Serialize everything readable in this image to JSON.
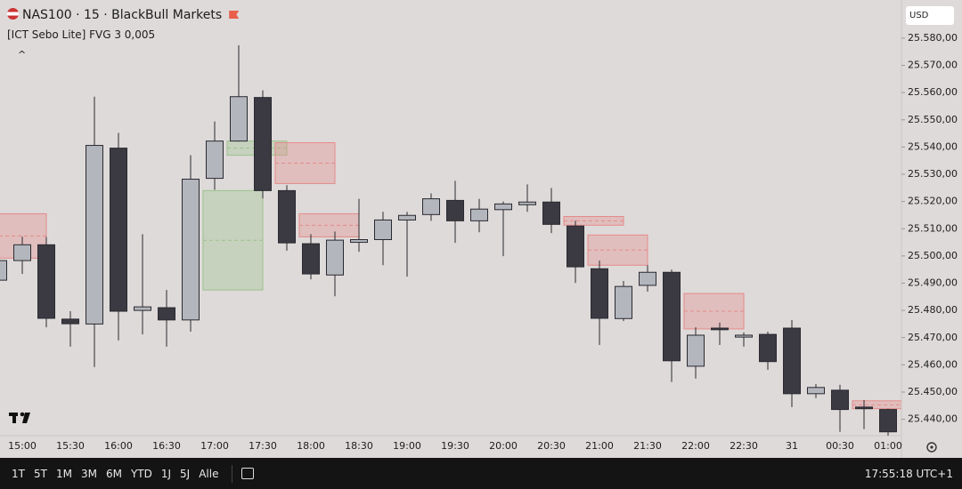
{
  "header": {
    "title": "NAS100 · 15 · BlackBull Markets",
    "indicator": "[ICT Sebo Lite] FVG 3 0,005",
    "currency": "USD"
  },
  "toolbar": {
    "timeframes": [
      "1T",
      "5T",
      "1M",
      "3M",
      "6M",
      "YTD",
      "1J",
      "5J",
      "Alle"
    ],
    "clock": "17:55:18 UTC+1"
  },
  "chart_data": {
    "type": "candlestick",
    "categories": [
      null,
      "15:00",
      null,
      "15:30",
      null,
      "16:00",
      null,
      "16:30",
      null,
      "17:00",
      null,
      "17:30",
      null,
      "18:00",
      null,
      "18:30",
      null,
      "19:00",
      null,
      "19:30",
      null,
      "20:00",
      null,
      "20:30",
      null,
      "21:00",
      null,
      "21:30",
      null,
      "22:00",
      null,
      "22:30",
      null,
      "31",
      null,
      "00:30",
      null,
      "01:00"
    ],
    "open": [
      25491.1,
      25498.3,
      25504.1,
      25476.8,
      25475.0,
      25539.6,
      25480.0,
      25481.0,
      25476.5,
      25528.5,
      25542.2,
      25558.2,
      25524.0,
      25504.5,
      25493.0,
      25505.0,
      25506.0,
      25513.2,
      25515.2,
      25520.4,
      25512.9,
      25517.0,
      25518.8,
      25519.8,
      25511.0,
      25495.3,
      25477.0,
      25489.2,
      25494.0,
      25459.5,
      25473.5,
      25470.2,
      25471.2,
      25473.5,
      25449.4,
      25450.7,
      25444.5,
      25443.6
    ],
    "high": [
      25500.0,
      25507.1,
      25507.0,
      25479.7,
      25558.5,
      25545.2,
      25508.0,
      25487.5,
      25537.0,
      25549.4,
      25577.4,
      25560.8,
      25526.0,
      25508.0,
      25509.0,
      25521.0,
      25516.2,
      25516.2,
      25523.0,
      25527.6,
      25521.0,
      25520.0,
      25526.3,
      25525.0,
      25513.0,
      25498.3,
      25490.8,
      25496.6,
      25495.0,
      25473.8,
      25475.5,
      25471.9,
      25472.2,
      25476.5,
      25453.0,
      25452.7,
      25447.1,
      25443.9
    ],
    "low": [
      25488.0,
      25493.4,
      25473.8,
      25466.7,
      25459.2,
      25469.0,
      25471.2,
      25466.7,
      25472.2,
      25524.3,
      25542.0,
      25521.1,
      25501.9,
      25491.4,
      25485.2,
      25501.5,
      25496.6,
      25492.4,
      25512.9,
      25504.8,
      25508.7,
      25499.9,
      25516.2,
      25508.4,
      25490.1,
      25467.3,
      25476.1,
      25486.9,
      25453.7,
      25455.0,
      25467.3,
      25466.7,
      25458.2,
      25444.5,
      25447.8,
      25435.4,
      25436.4,
      25434.0
    ],
    "close": [
      25498.3,
      25504.1,
      25477.1,
      25475.1,
      25540.6,
      25479.7,
      25481.3,
      25476.5,
      25528.2,
      25542.2,
      25558.5,
      25524.0,
      25504.8,
      25493.4,
      25505.8,
      25506.0,
      25513.2,
      25514.9,
      25521.0,
      25512.9,
      25517.2,
      25519.1,
      25519.8,
      25511.6,
      25496.0,
      25477.1,
      25488.8,
      25494.0,
      25461.5,
      25470.9,
      25472.9,
      25470.9,
      25461.2,
      25449.4,
      25451.7,
      25443.6,
      25443.9,
      25435.4
    ],
    "up_color": "#b4b6bd",
    "down_color": "#3b3a42",
    "zones": [
      {
        "from": 0,
        "to": 2,
        "top": 25515.5,
        "bottom": 25499.2,
        "color": "#e58a8a"
      },
      {
        "from": 9,
        "to": 11,
        "top": 25524.0,
        "bottom": 25487.5,
        "color": "#9cc28c"
      },
      {
        "from": 10,
        "to": 12,
        "top": 25542.2,
        "bottom": 25537.0,
        "color": "#9cc28c"
      },
      {
        "from": 12,
        "to": 14,
        "top": 25541.6,
        "bottom": 25526.6,
        "color": "#e58a8a"
      },
      {
        "from": 13,
        "to": 15,
        "top": 25515.5,
        "bottom": 25507.0,
        "color": "#e58a8a"
      },
      {
        "from": 24,
        "to": 26,
        "top": 25514.5,
        "bottom": 25511.3,
        "color": "#e58a8a"
      },
      {
        "from": 25,
        "to": 27,
        "top": 25507.7,
        "bottom": 25496.6,
        "color": "#e58a8a"
      },
      {
        "from": 29,
        "to": 31,
        "top": 25486.2,
        "bottom": 25473.2,
        "color": "#e58a8a"
      },
      {
        "from": 36,
        "to": 38,
        "top": 25446.8,
        "bottom": 25443.9,
        "color": "#e58a8a"
      }
    ],
    "ylim": [
      25434.0,
      25594.0
    ],
    "yticks": [
      {
        "value": 25440,
        "label": "25.440,00"
      },
      {
        "value": 25450,
        "label": "25.450,00"
      },
      {
        "value": 25460,
        "label": "25.460,00"
      },
      {
        "value": 25470,
        "label": "25.470,00"
      },
      {
        "value": 25480,
        "label": "25.480,00"
      },
      {
        "value": 25490,
        "label": "25.490,00"
      },
      {
        "value": 25500,
        "label": "25.500,00"
      },
      {
        "value": 25510,
        "label": "25.510,00"
      },
      {
        "value": 25520,
        "label": "25.520,00"
      },
      {
        "value": 25530,
        "label": "25.530,00"
      },
      {
        "value": 25540,
        "label": "25.540,00"
      },
      {
        "value": 25550,
        "label": "25.550,00"
      },
      {
        "value": 25560,
        "label": "25.560,00"
      },
      {
        "value": 25570,
        "label": "25.570,00"
      },
      {
        "value": 25580,
        "label": "25.580,00"
      }
    ]
  }
}
